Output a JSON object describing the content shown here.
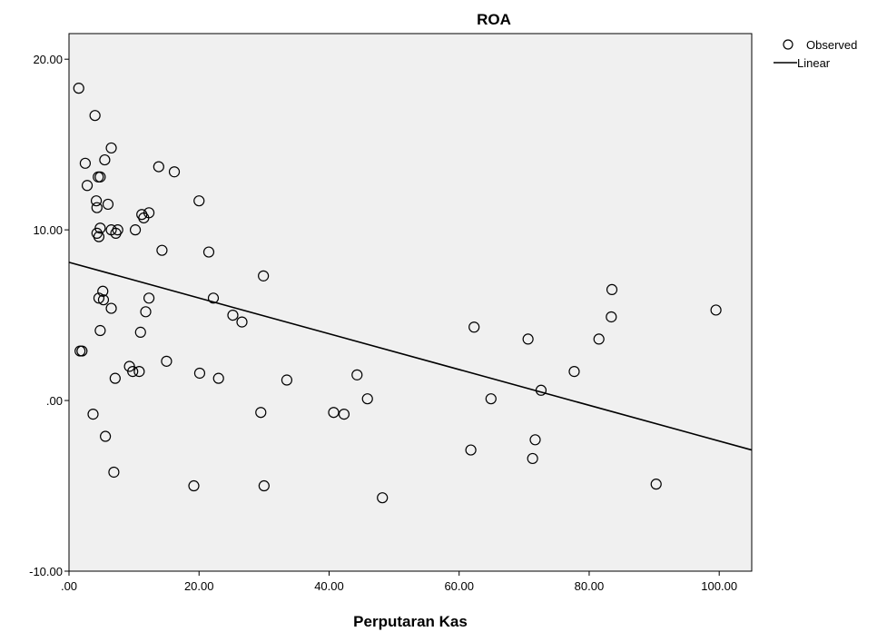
{
  "chart_data": {
    "type": "scatter",
    "title": "ROA",
    "xlabel": "Perputaran Kas",
    "ylabel": "",
    "xlim": [
      0,
      105
    ],
    "ylim": [
      -10,
      21.5
    ],
    "x_ticks": [
      ".00",
      "20.00",
      "40.00",
      "60.00",
      "80.00",
      "100.00"
    ],
    "x_tick_values": [
      0,
      20,
      40,
      60,
      80,
      100
    ],
    "y_ticks": [
      "20.00",
      "10.00",
      ".00",
      "-10.00"
    ],
    "y_tick_values": [
      20,
      10,
      0,
      -10
    ],
    "grid": false,
    "legend_position": "top-right",
    "background_color": "#f0f0f0",
    "series": [
      {
        "name": "Observed",
        "marker": "open-circle",
        "points": [
          [
            1.5,
            18.3
          ],
          [
            4.0,
            16.7
          ],
          [
            6.5,
            14.8
          ],
          [
            5.5,
            14.1
          ],
          [
            2.5,
            13.9
          ],
          [
            13.8,
            13.7
          ],
          [
            16.2,
            13.4
          ],
          [
            4.5,
            13.1
          ],
          [
            4.8,
            13.1
          ],
          [
            2.8,
            12.6
          ],
          [
            4.2,
            11.7
          ],
          [
            6.0,
            11.5
          ],
          [
            20.0,
            11.7
          ],
          [
            4.3,
            11.3
          ],
          [
            12.3,
            11.0
          ],
          [
            11.2,
            10.9
          ],
          [
            11.5,
            10.7
          ],
          [
            4.8,
            10.1
          ],
          [
            6.5,
            10.0
          ],
          [
            7.5,
            10.0
          ],
          [
            10.2,
            10.0
          ],
          [
            4.3,
            9.8
          ],
          [
            4.6,
            9.6
          ],
          [
            7.2,
            9.8
          ],
          [
            14.3,
            8.8
          ],
          [
            21.5,
            8.7
          ],
          [
            29.9,
            7.3
          ],
          [
            5.2,
            6.4
          ],
          [
            4.6,
            6.0
          ],
          [
            5.3,
            5.9
          ],
          [
            12.3,
            6.0
          ],
          [
            22.2,
            6.0
          ],
          [
            6.5,
            5.4
          ],
          [
            11.8,
            5.2
          ],
          [
            25.2,
            5.0
          ],
          [
            26.6,
            4.6
          ],
          [
            4.8,
            4.1
          ],
          [
            11.0,
            4.0
          ],
          [
            1.7,
            2.9
          ],
          [
            2.0,
            2.9
          ],
          [
            15.0,
            2.3
          ],
          [
            9.3,
            2.0
          ],
          [
            9.8,
            1.7
          ],
          [
            10.8,
            1.7
          ],
          [
            7.1,
            1.3
          ],
          [
            20.1,
            1.6
          ],
          [
            23.0,
            1.3
          ],
          [
            33.5,
            1.2
          ],
          [
            44.3,
            1.5
          ],
          [
            45.9,
            0.1
          ],
          [
            3.7,
            -0.8
          ],
          [
            29.5,
            -0.7
          ],
          [
            40.7,
            -0.7
          ],
          [
            42.3,
            -0.8
          ],
          [
            5.6,
            -2.1
          ],
          [
            6.9,
            -4.2
          ],
          [
            19.2,
            -5.0
          ],
          [
            30.0,
            -5.0
          ],
          [
            48.2,
            -5.7
          ],
          [
            62.3,
            4.3
          ],
          [
            70.6,
            3.6
          ],
          [
            81.5,
            3.6
          ],
          [
            83.5,
            6.5
          ],
          [
            83.4,
            4.9
          ],
          [
            99.5,
            5.3
          ],
          [
            77.7,
            1.7
          ],
          [
            72.6,
            0.6
          ],
          [
            64.9,
            0.1
          ],
          [
            61.8,
            -2.9
          ],
          [
            71.7,
            -2.3
          ],
          [
            71.3,
            -3.4
          ],
          [
            90.3,
            -4.9
          ]
        ]
      },
      {
        "name": "Linear",
        "marker": "line",
        "points": [
          [
            0,
            8.1
          ],
          [
            105,
            -2.9
          ]
        ]
      }
    ]
  }
}
